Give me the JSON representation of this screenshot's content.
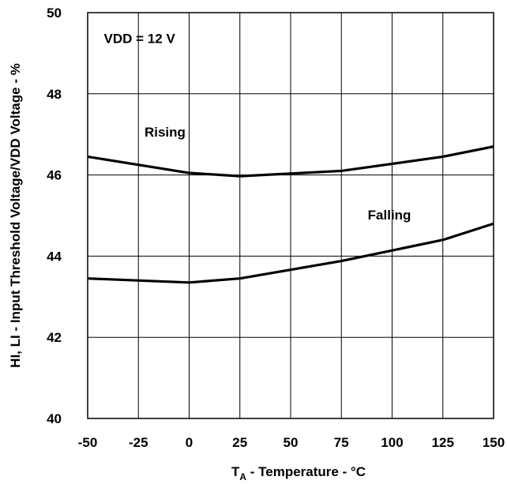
{
  "chart_data": {
    "type": "line",
    "xlabel_main": "T",
    "xlabel_sub": "A",
    "xlabel_rest": " - Temperature - °C",
    "ylabel": "HI, LI - Input Threshold Voltage/VDD Voltage - %",
    "xlim": [
      -50,
      150
    ],
    "ylim": [
      40,
      50
    ],
    "grid": true,
    "x_ticks": [
      -50,
      -25,
      0,
      25,
      50,
      75,
      100,
      125,
      150
    ],
    "y_ticks": [
      40,
      42,
      44,
      46,
      48,
      50
    ],
    "series": [
      {
        "name": "Rising",
        "x": [
          -50,
          0,
          25,
          75,
          125,
          150
        ],
        "y": [
          46.45,
          46.05,
          45.97,
          46.1,
          46.45,
          46.7
        ]
      },
      {
        "name": "Falling",
        "x": [
          -50,
          0,
          25,
          75,
          125,
          150
        ],
        "y": [
          43.45,
          43.35,
          43.45,
          43.88,
          44.4,
          44.8
        ]
      }
    ],
    "annotations": [
      {
        "text": "VDD = 12 V",
        "x": -42,
        "y": 49.25
      },
      {
        "text": "Rising",
        "x": -22,
        "y": 46.95
      },
      {
        "text": "Falling",
        "x": 88,
        "y": 44.9
      }
    ]
  }
}
